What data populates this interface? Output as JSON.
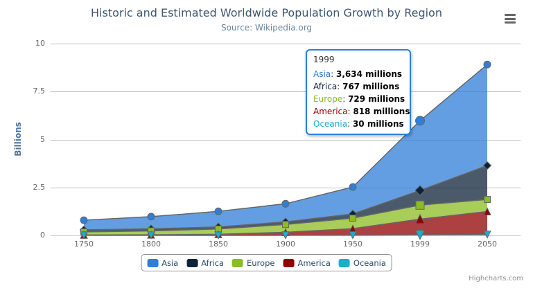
{
  "chart_data": {
    "type": "area",
    "stacking": "normal",
    "title": "Historic and Estimated Worldwide Population Growth by Region",
    "subtitle": "Source: Wikipedia.org",
    "categories": [
      "1750",
      "1800",
      "1850",
      "1900",
      "1950",
      "1999",
      "2050"
    ],
    "series": [
      {
        "name": "Asia",
        "color": "#2f7ed8",
        "symbol": "circle",
        "values": [
          502,
          635,
          809,
          947,
          1402,
          3634,
          5268
        ]
      },
      {
        "name": "Africa",
        "color": "#0d233a",
        "symbol": "diamond",
        "values": [
          106,
          107,
          111,
          133,
          221,
          767,
          1766
        ]
      },
      {
        "name": "Europe",
        "color": "#8bbc21",
        "symbol": "square",
        "values": [
          163,
          203,
          276,
          408,
          547,
          729,
          628
        ]
      },
      {
        "name": "America",
        "color": "#910000",
        "symbol": "triangle",
        "values": [
          18,
          31,
          54,
          156,
          339,
          818,
          1201
        ]
      },
      {
        "name": "Oceania",
        "color": "#1aadce",
        "symbol": "triangle-down",
        "values": [
          2,
          2,
          2,
          6,
          13,
          30,
          46
        ]
      }
    ],
    "unit": "millions",
    "xlabel": "",
    "ylabel": "Billions",
    "ylim": [
      0,
      10
    ],
    "yticks": [
      0,
      2.5,
      5,
      7.5,
      10
    ],
    "grid": true,
    "legend_position": "bottom",
    "line_color": "#666666",
    "grid_color": "#C0C0C0",
    "axis_line_color": "#C0D0E0",
    "label_color": "#666666",
    "fill_opacity": 0.75,
    "hover_index": 5
  },
  "tooltip": {
    "header": "1999",
    "border_color": "#2f7ed8",
    "rows": [
      {
        "name": "Asia",
        "color": "#2f7ed8",
        "value": "3,634 millions"
      },
      {
        "name": "Africa",
        "color": "#0d233a",
        "value": "767 millions"
      },
      {
        "name": "Europe",
        "color": "#8bbc21",
        "value": "729 millions"
      },
      {
        "name": "America",
        "color": "#910000",
        "value": "818 millions"
      },
      {
        "name": "Oceania",
        "color": "#1aadce",
        "value": "30 millions"
      }
    ]
  },
  "credits": {
    "text": "Highcharts.com"
  }
}
